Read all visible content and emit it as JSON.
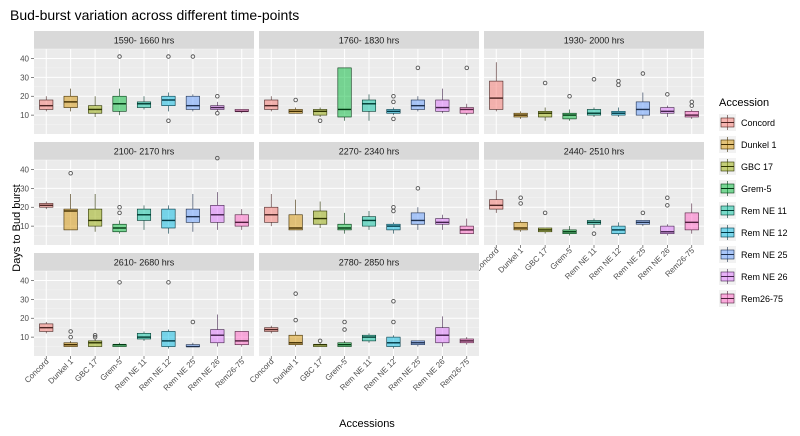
{
  "chart_data": {
    "type": "boxplot",
    "title": "Bud-burst variation across different time-points",
    "xlabel": "Accessions",
    "ylabel": "Days to Bud burst",
    "ylim": [
      0,
      45
    ],
    "y_ticks": [
      10,
      20,
      30,
      40
    ],
    "grid": true,
    "legend_title": "Accession",
    "legend_position": "right",
    "categories": [
      "Concord",
      "Dunkel 1",
      "GBC 17",
      "Grem-5",
      "Rem NE 11",
      "Rem NE 12",
      "Rem NE 25",
      "Rem NE 26",
      "Rem26-75"
    ],
    "colors": [
      "#F8766D",
      "#D39200",
      "#93AA00",
      "#00BA38",
      "#00C19F",
      "#00B9E3",
      "#619CFF",
      "#DB72FB",
      "#FF61C3"
    ],
    "panels": [
      {
        "label": "1590- 1660 hrs",
        "boxes": [
          {
            "min": 12,
            "q1": 13,
            "median": 15,
            "q3": 18,
            "max": 20,
            "outliers": []
          },
          {
            "min": 12,
            "q1": 14,
            "median": 17,
            "q3": 20,
            "max": 24,
            "outliers": []
          },
          {
            "min": 9,
            "q1": 11,
            "median": 13,
            "q3": 15,
            "max": 20,
            "outliers": []
          },
          {
            "min": 10,
            "q1": 12,
            "median": 16,
            "q3": 20,
            "max": 24,
            "outliers": [
              41
            ]
          },
          {
            "min": 13,
            "q1": 14,
            "median": 16,
            "q3": 17,
            "max": 20,
            "outliers": []
          },
          {
            "min": 12,
            "q1": 15,
            "median": 18,
            "q3": 20,
            "max": 22,
            "outliers": [
              41,
              7
            ]
          },
          {
            "min": 12,
            "q1": 13,
            "median": 15,
            "q3": 20,
            "max": 21,
            "outliers": [
              41
            ]
          },
          {
            "min": 12,
            "q1": 13,
            "median": 14,
            "q3": 15,
            "max": 17,
            "outliers": [
              20,
              11
            ]
          },
          {
            "min": 11,
            "q1": 12,
            "median": 12,
            "q3": 13,
            "max": 13,
            "outliers": []
          }
        ]
      },
      {
        "label": "1760- 1830 hrs",
        "boxes": [
          {
            "min": 12,
            "q1": 13,
            "median": 15,
            "q3": 18,
            "max": 20,
            "outliers": []
          },
          {
            "min": 11,
            "q1": 11,
            "median": 12,
            "q3": 13,
            "max": 14,
            "outliers": [
              18
            ]
          },
          {
            "min": 9,
            "q1": 10,
            "median": 12,
            "q3": 13,
            "max": 14,
            "outliers": [
              7
            ]
          },
          {
            "min": 7,
            "q1": 9,
            "median": 13,
            "q3": 35,
            "max": 35,
            "outliers": []
          },
          {
            "min": 7,
            "q1": 12,
            "median": 16,
            "q3": 18,
            "max": 21,
            "outliers": []
          },
          {
            "min": 10,
            "q1": 11,
            "median": 12,
            "q3": 13,
            "max": 14,
            "outliers": [
              17,
              20,
              8
            ]
          },
          {
            "min": 12,
            "q1": 13,
            "median": 15,
            "q3": 18,
            "max": 20,
            "outliers": [
              35
            ]
          },
          {
            "min": 11,
            "q1": 12,
            "median": 14,
            "q3": 18,
            "max": 24,
            "outliers": []
          },
          {
            "min": 10,
            "q1": 11,
            "median": 13,
            "q3": 14,
            "max": 16,
            "outliers": [
              35
            ]
          }
        ]
      },
      {
        "label": "1930- 2000 hrs",
        "boxes": [
          {
            "min": 12,
            "q1": 13,
            "median": 19,
            "q3": 28,
            "max": 38,
            "outliers": []
          },
          {
            "min": 8,
            "q1": 9,
            "median": 10,
            "q3": 11,
            "max": 12,
            "outliers": []
          },
          {
            "min": 7,
            "q1": 9,
            "median": 11,
            "q3": 12,
            "max": 14,
            "outliers": [
              27
            ]
          },
          {
            "min": 7,
            "q1": 8,
            "median": 10,
            "q3": 11,
            "max": 13,
            "outliers": [
              20
            ]
          },
          {
            "min": 9,
            "q1": 10,
            "median": 11,
            "q3": 13,
            "max": 14,
            "outliers": [
              29
            ]
          },
          {
            "min": 9,
            "q1": 10,
            "median": 11,
            "q3": 12,
            "max": 14,
            "outliers": [
              28,
              26
            ]
          },
          {
            "min": 8,
            "q1": 10,
            "median": 13,
            "q3": 17,
            "max": 22,
            "outliers": [
              32
            ]
          },
          {
            "min": 9,
            "q1": 11,
            "median": 12,
            "q3": 14,
            "max": 15,
            "outliers": [
              21
            ]
          },
          {
            "min": 8,
            "q1": 9,
            "median": 10,
            "q3": 12,
            "max": 13,
            "outliers": [
              17,
              15
            ]
          }
        ]
      },
      {
        "label": "2100- 2170 hrs",
        "boxes": [
          {
            "min": 19,
            "q1": 20,
            "median": 21,
            "q3": 22,
            "max": 23,
            "outliers": []
          },
          {
            "min": 8,
            "q1": 8,
            "median": 18,
            "q3": 19,
            "max": 27,
            "outliers": [
              38
            ]
          },
          {
            "min": 7,
            "q1": 10,
            "median": 13,
            "q3": 19,
            "max": 27,
            "outliers": []
          },
          {
            "min": 6,
            "q1": 7,
            "median": 9,
            "q3": 11,
            "max": 13,
            "outliers": [
              20,
              17
            ]
          },
          {
            "min": 8,
            "q1": 13,
            "median": 16,
            "q3": 19,
            "max": 21,
            "outliers": []
          },
          {
            "min": 6,
            "q1": 9,
            "median": 13,
            "q3": 19,
            "max": 21,
            "outliers": []
          },
          {
            "min": 7,
            "q1": 12,
            "median": 15,
            "q3": 19,
            "max": 27,
            "outliers": []
          },
          {
            "min": 8,
            "q1": 12,
            "median": 16,
            "q3": 21,
            "max": 28,
            "outliers": [
              46
            ]
          },
          {
            "min": 8,
            "q1": 10,
            "median": 12,
            "q3": 16,
            "max": 19,
            "outliers": []
          }
        ]
      },
      {
        "label": "2270- 2340 hrs",
        "boxes": [
          {
            "min": 10,
            "q1": 12,
            "median": 16,
            "q3": 20,
            "max": 27,
            "outliers": []
          },
          {
            "min": 8,
            "q1": 8,
            "median": 9,
            "q3": 16,
            "max": 24,
            "outliers": []
          },
          {
            "min": 9,
            "q1": 11,
            "median": 14,
            "q3": 18,
            "max": 23,
            "outliers": []
          },
          {
            "min": 6,
            "q1": 8,
            "median": 9,
            "q3": 11,
            "max": 17,
            "outliers": []
          },
          {
            "min": 8,
            "q1": 10,
            "median": 13,
            "q3": 15,
            "max": 18,
            "outliers": []
          },
          {
            "min": 6,
            "q1": 8,
            "median": 10,
            "q3": 11,
            "max": 12,
            "outliers": [
              20,
              18
            ]
          },
          {
            "min": 8,
            "q1": 11,
            "median": 13,
            "q3": 17,
            "max": 20,
            "outliers": [
              30
            ]
          },
          {
            "min": 8,
            "q1": 11,
            "median": 12,
            "q3": 14,
            "max": 16,
            "outliers": []
          },
          {
            "min": 6,
            "q1": 6,
            "median": 8,
            "q3": 10,
            "max": 14,
            "outliers": []
          }
        ]
      },
      {
        "label": "2440- 2510 hrs",
        "boxes": [
          {
            "min": 17,
            "q1": 19,
            "median": 21,
            "q3": 24,
            "max": 29,
            "outliers": []
          },
          {
            "min": 7,
            "q1": 8,
            "median": 9,
            "q3": 12,
            "max": 13,
            "outliers": [
              25,
              22
            ]
          },
          {
            "min": 6,
            "q1": 7,
            "median": 8,
            "q3": 9,
            "max": 9,
            "outliers": [
              17
            ]
          },
          {
            "min": 5,
            "q1": 6,
            "median": 7,
            "q3": 8,
            "max": 10,
            "outliers": []
          },
          {
            "min": 9,
            "q1": 11,
            "median": 12,
            "q3": 13,
            "max": 14,
            "outliers": [
              6
            ]
          },
          {
            "min": 5,
            "q1": 6,
            "median": 8,
            "q3": 10,
            "max": 12,
            "outliers": []
          },
          {
            "min": 10,
            "q1": 11,
            "median": 12,
            "q3": 13,
            "max": 13,
            "outliers": [
              17
            ]
          },
          {
            "min": 5,
            "q1": 6,
            "median": 7,
            "q3": 10,
            "max": 11,
            "outliers": [
              25,
              21
            ]
          },
          {
            "min": 6,
            "q1": 8,
            "median": 12,
            "q3": 17,
            "max": 22,
            "outliers": []
          }
        ]
      },
      {
        "label": "2610- 2680 hrs",
        "boxes": [
          {
            "min": 12,
            "q1": 13,
            "median": 15,
            "q3": 17,
            "max": 18,
            "outliers": []
          },
          {
            "min": 5,
            "q1": 5,
            "median": 6,
            "q3": 7,
            "max": 8,
            "outliers": [
              13,
              10
            ]
          },
          {
            "min": 5,
            "q1": 5,
            "median": 7,
            "q3": 8,
            "max": 9,
            "outliers": [
              11,
              10
            ]
          },
          {
            "min": 5,
            "q1": 5,
            "median": 6,
            "q3": 6,
            "max": 7,
            "outliers": [
              39
            ]
          },
          {
            "min": 8,
            "q1": 9,
            "median": 10,
            "q3": 12,
            "max": 13,
            "outliers": []
          },
          {
            "min": 4,
            "q1": 5,
            "median": 8,
            "q3": 13,
            "max": 14,
            "outliers": [
              39
            ]
          },
          {
            "min": 5,
            "q1": 5,
            "median": 5,
            "q3": 6,
            "max": 7,
            "outliers": [
              18
            ]
          },
          {
            "min": 5,
            "q1": 7,
            "median": 11,
            "q3": 14,
            "max": 22,
            "outliers": []
          },
          {
            "min": 5,
            "q1": 6,
            "median": 8,
            "q3": 13,
            "max": 13,
            "outliers": []
          }
        ]
      },
      {
        "label": "2780- 2850 hrs",
        "boxes": [
          {
            "min": 12,
            "q1": 13,
            "median": 14,
            "q3": 15,
            "max": 16,
            "outliers": []
          },
          {
            "min": 5,
            "q1": 6,
            "median": 7,
            "q3": 11,
            "max": 13,
            "outliers": [
              33,
              19
            ]
          },
          {
            "min": 5,
            "q1": 5,
            "median": 6,
            "q3": 6,
            "max": 7,
            "outliers": [
              8
            ]
          },
          {
            "min": 5,
            "q1": 5,
            "median": 6,
            "q3": 7,
            "max": 8,
            "outliers": [
              18,
              14
            ]
          },
          {
            "min": 7,
            "q1": 8,
            "median": 10,
            "q3": 11,
            "max": 12,
            "outliers": []
          },
          {
            "min": 4,
            "q1": 5,
            "median": 7,
            "q3": 10,
            "max": 11,
            "outliers": [
              29,
              18
            ]
          },
          {
            "min": 5,
            "q1": 6,
            "median": 7,
            "q3": 8,
            "max": 8,
            "outliers": []
          },
          {
            "min": 5,
            "q1": 7,
            "median": 11,
            "q3": 15,
            "max": 21,
            "outliers": []
          },
          {
            "min": 6,
            "q1": 7,
            "median": 8,
            "q3": 9,
            "max": 10,
            "outliers": []
          }
        ]
      }
    ]
  }
}
